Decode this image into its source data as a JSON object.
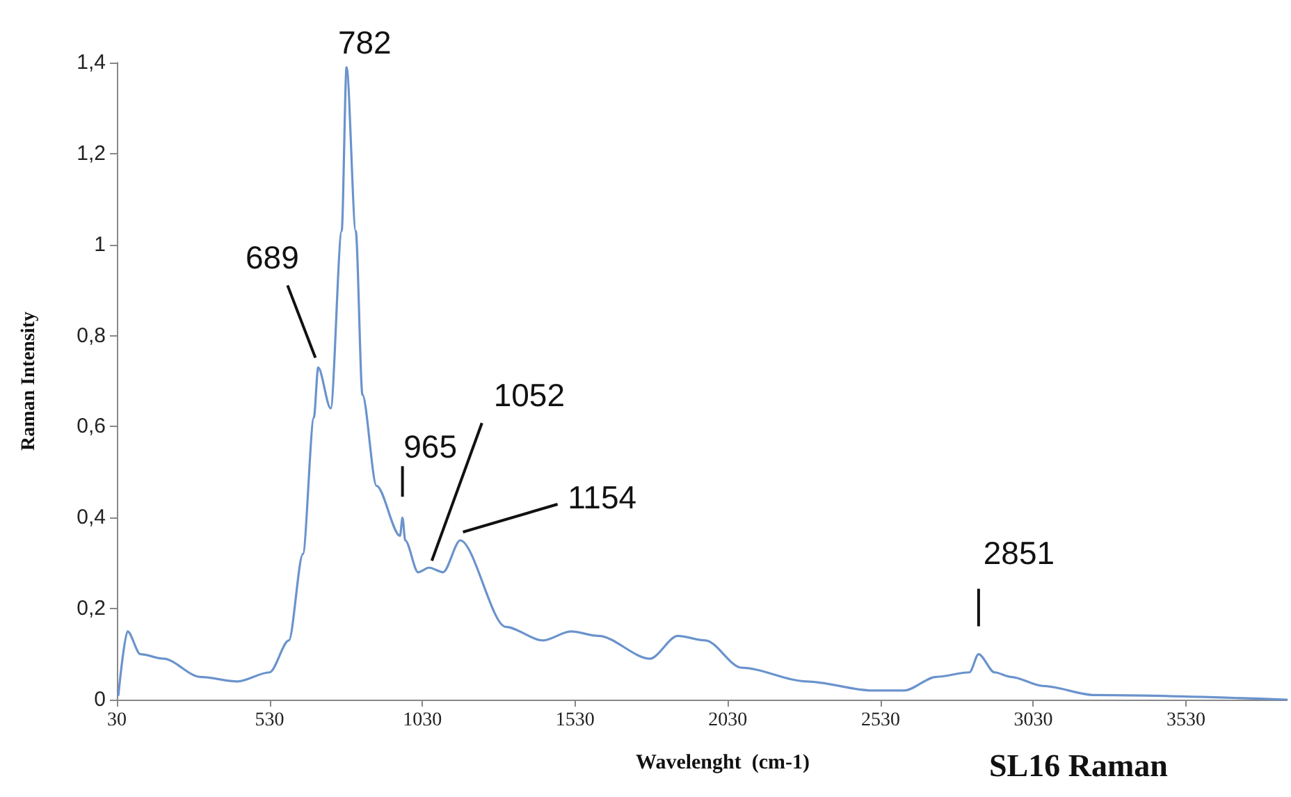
{
  "chart_data": {
    "type": "line",
    "title": "SL16 Raman",
    "xlabel": "Wavelenght  (cm-1)",
    "ylabel": "Raman Intensity",
    "x": [
      35,
      65,
      107,
      183,
      303,
      425,
      530,
      593,
      639,
      675,
      689,
      730,
      766,
      782,
      812,
      834,
      880,
      957,
      965,
      974,
      1016,
      1052,
      1098,
      1154,
      1303,
      1425,
      1516,
      1607,
      1775,
      1866,
      1957,
      2075,
      2289,
      2503,
      2607,
      2712,
      2821,
      2851,
      2903,
      2957,
      3062,
      3230,
      3860
    ],
    "series": [
      {
        "color": "#6a93cc",
        "values": [
          0.01,
          0.15,
          0.1,
          0.09,
          0.05,
          0.04,
          0.06,
          0.13,
          0.32,
          0.62,
          0.73,
          0.64,
          1.03,
          1.39,
          1.03,
          0.67,
          0.47,
          0.36,
          0.4,
          0.35,
          0.28,
          0.29,
          0.28,
          0.35,
          0.16,
          0.13,
          0.15,
          0.14,
          0.09,
          0.14,
          0.13,
          0.07,
          0.04,
          0.02,
          0.02,
          0.05,
          0.06,
          0.1,
          0.06,
          0.05,
          0.03,
          0.01,
          0.0
        ]
      }
    ],
    "xlim": [
      30,
      3860
    ],
    "xticks": [
      30,
      530,
      1030,
      1530,
      2030,
      2530,
      3030,
      3530
    ],
    "ylim": [
      0,
      1.4
    ],
    "yticks": [
      0,
      {
        "value": 0.2,
        "label": "0,2"
      },
      {
        "value": 0.4,
        "label": "0,4"
      },
      {
        "value": 0.6,
        "label": "0,6"
      },
      {
        "value": 0.8,
        "label": "0,8"
      },
      1,
      {
        "value": 1.2,
        "label": "1,2"
      },
      {
        "value": 1.4,
        "label": "1,4"
      }
    ],
    "annotations": [
      {
        "text": "689",
        "x": 689,
        "y": 0.73
      },
      {
        "text": "782",
        "x": 782,
        "y": 1.39
      },
      {
        "text": "965",
        "x": 965,
        "y": 0.4
      },
      {
        "text": "1052",
        "x": 1052,
        "y": 0.29
      },
      {
        "text": "1154",
        "x": 1154,
        "y": 0.35
      },
      {
        "text": "2851",
        "x": 2851,
        "y": 0.1
      }
    ],
    "grid": false,
    "marker": "none",
    "line_style": "solid"
  }
}
